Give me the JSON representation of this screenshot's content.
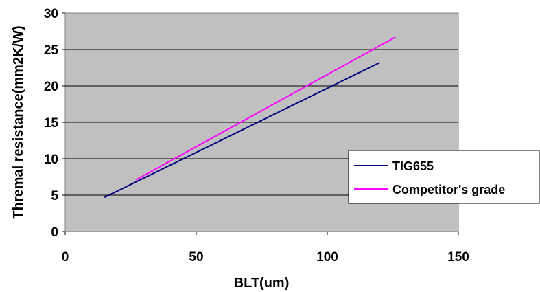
{
  "chart_data": {
    "type": "line",
    "xlabel": "BLT(um)",
    "ylabel": "Thremal resistance(mm2K/W)",
    "xlim": [
      0,
      150
    ],
    "ylim": [
      0,
      30
    ],
    "xticks": [
      "0",
      "50",
      "100",
      "150"
    ],
    "yticks": [
      "0",
      "5",
      "10",
      "15",
      "20",
      "25",
      "30"
    ],
    "grid": "horizontal",
    "legend_position": "right",
    "plot_background": "#c0c0c0",
    "series": [
      {
        "name": "TIG655",
        "color": "#000080",
        "x": [
          15,
          120
        ],
        "y": [
          4.7,
          23.2
        ]
      },
      {
        "name": "Competitor's grade",
        "color": "#ff00ff",
        "x": [
          27,
          126
        ],
        "y": [
          7.1,
          26.7
        ]
      }
    ]
  }
}
